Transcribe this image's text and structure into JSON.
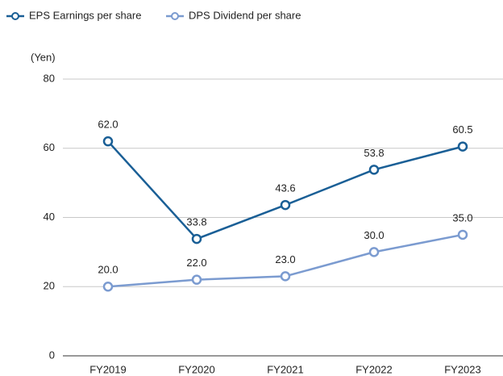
{
  "chart_data": {
    "type": "line",
    "y_label": "(Yen)",
    "categories": [
      "FY2019",
      "FY2020",
      "FY2021",
      "FY2022",
      "FY2023"
    ],
    "series": [
      {
        "name": "EPS Earnings per share",
        "color": "#1a5f96",
        "values": [
          62,
          33.8,
          43.6,
          53.8,
          60.5
        ],
        "value_labels": [
          "62.0",
          "33.8",
          "43.6",
          "53.8",
          "60.5"
        ]
      },
      {
        "name": "DPS Dividend per share",
        "color": "#7b9bd0",
        "values": [
          20,
          22,
          23,
          30,
          35
        ],
        "value_labels": [
          "20.0",
          "22.0",
          "23.0",
          "30.0",
          "35.0"
        ]
      }
    ],
    "ylim": [
      0,
      80
    ],
    "yticks": [
      0,
      20,
      40,
      60,
      80
    ],
    "grid": true,
    "legend": "top-left"
  }
}
